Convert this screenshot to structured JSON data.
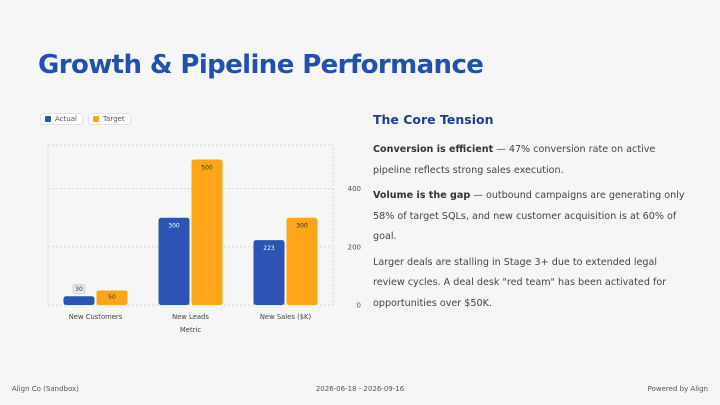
{
  "title": "Growth & Pipeline Performance",
  "legend": {
    "actual_label": "Actual",
    "target_label": "Target"
  },
  "colors": {
    "actual": "#2b54b4",
    "target": "#ffa51a",
    "title": "#2250b0",
    "heading": "#1f3f8f"
  },
  "chart_data": {
    "type": "bar",
    "categories": [
      "New Customers",
      "New Leads",
      "New Sales ($K)"
    ],
    "series": [
      {
        "name": "Actual",
        "values": [
          30,
          300,
          223
        ]
      },
      {
        "name": "Target",
        "values": [
          50,
          500,
          300
        ]
      }
    ],
    "xlabel": "Metric",
    "ylabel": "",
    "yticks": [
      0,
      200,
      400
    ],
    "ylim": [
      0,
      550
    ],
    "grid": true,
    "legend_position": "top-left",
    "y_axis_side": "right"
  },
  "panel": {
    "heading": "The Core Tension",
    "p1_bold": "Conversion is efficient",
    "p1_rest": " — 47% conversion rate on active pipeline reflects strong sales execution.",
    "p2_bold": "Volume is the gap",
    "p2_rest": " — outbound campaigns are generating only 58% of target SQLs, and new customer acquisition is at 60% of goal.",
    "p3": "Larger deals are stalling in Stage 3+ due to extended legal review cycles. A deal desk \"red team\" has been activated for opportunities over $50K."
  },
  "footer": {
    "left": "Align Co (Sandbox)",
    "center": "2026-06-18 - 2026-09-16",
    "right": "Powered by Align"
  }
}
